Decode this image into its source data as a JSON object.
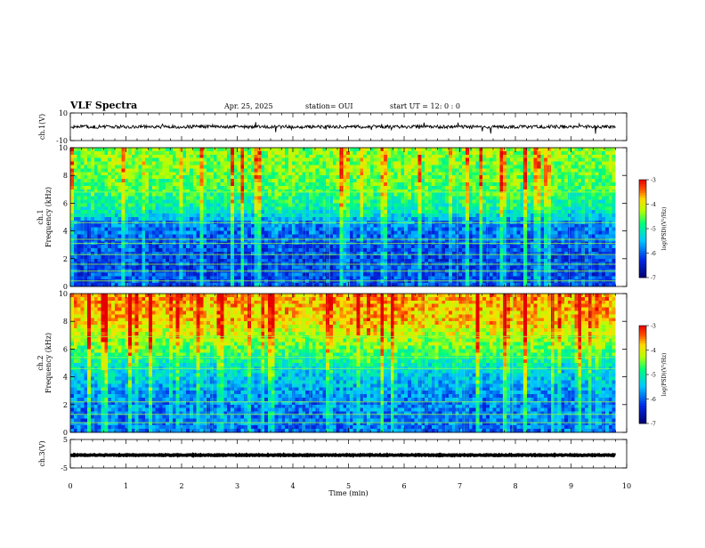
{
  "header": {
    "title": "VLF Spectra",
    "date": "Apr. 25, 2025",
    "station": "station= OUI",
    "start_time": "start  UT  =   12: 0  : 0"
  },
  "chart_data": {
    "type": "heatmap",
    "x": {
      "label": "Time  (min)",
      "range": [
        0,
        10
      ],
      "ticks": [
        "0",
        "1",
        "2",
        "3",
        "4",
        "5",
        "6",
        "7",
        "8",
        "9",
        "10"
      ]
    },
    "panels": [
      {
        "id": "ch1_waveform",
        "ylabel": "ch.1(V)",
        "yrange": [
          -10,
          10
        ],
        "ticks": [
          "10",
          "-10"
        ],
        "series": [
          {
            "name": "ch.1 waveform",
            "baseline": 0,
            "noise_amplitude": 1.2
          }
        ]
      },
      {
        "id": "ch1_spectrogram",
        "ylabel_top": "ch.1",
        "ylabel": "Frequency  (kHz)",
        "yrange": [
          0,
          10
        ],
        "ticks": [
          "0",
          "2",
          "4",
          "6",
          "8",
          "10"
        ],
        "z_unit": "log(PSD)(V²/Hz)",
        "zrange": [
          -7,
          -3
        ],
        "cb_ticks": [
          "-3",
          "-4",
          "-5",
          "-6",
          "-7"
        ],
        "profile_log_psd": [
          {
            "kHz": 0.5,
            "value": -6.2
          },
          {
            "kHz": 2,
            "value": -6.3
          },
          {
            "kHz": 4.5,
            "value": -6.0
          },
          {
            "kHz": 5.5,
            "value": -5.2
          },
          {
            "kHz": 7,
            "value": -4.8
          },
          {
            "kHz": 9,
            "value": -4.6
          }
        ],
        "tone_lines_kHz": [
          0.4,
          1.1,
          1.6,
          2.3,
          3.1,
          3.4,
          4.6,
          6.8
        ]
      },
      {
        "id": "ch2_spectrogram",
        "ylabel_top": "ch.2",
        "ylabel": "Frequency  (kHz)",
        "yrange": [
          0,
          10
        ],
        "ticks": [
          "0",
          "2",
          "4",
          "6",
          "8",
          "10"
        ],
        "z_unit": "log(PSD)(V²/Hz)",
        "zrange": [
          -7,
          -3
        ],
        "cb_ticks": [
          "-3",
          "-4",
          "-5",
          "-6",
          "-7"
        ],
        "profile_log_psd": [
          {
            "kHz": 0.5,
            "value": -6.0
          },
          {
            "kHz": 2.5,
            "value": -5.9
          },
          {
            "kHz": 4.5,
            "value": -5.4
          },
          {
            "kHz": 6,
            "value": -4.7
          },
          {
            "kHz": 8,
            "value": -4.0
          },
          {
            "kHz": 9.8,
            "value": -3.8
          }
        ],
        "tone_lines_kHz": [
          0.7,
          1.3,
          2.2,
          4.6,
          5.4,
          6.9
        ]
      },
      {
        "id": "ch3_waveform",
        "ylabel": "ch.3(V)",
        "yrange": [
          -5,
          5
        ],
        "ticks": [
          "5",
          "-5"
        ],
        "series": [
          {
            "name": "ch.3 waveform",
            "baseline": -0.5,
            "noise_amplitude": 0.15
          }
        ]
      }
    ],
    "data_end_min": 9.8
  }
}
